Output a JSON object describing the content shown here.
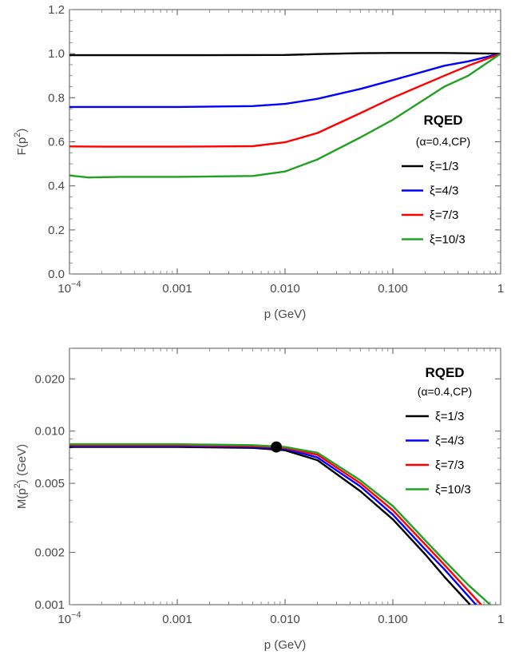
{
  "chart_data": [
    {
      "type": "line",
      "xscale": "log",
      "xlim": [
        0.0001,
        1
      ],
      "ylim": [
        0.0,
        1.2
      ],
      "xlabel": "p (GeV)",
      "ylabel": "F(p²)",
      "ylabel_base": "F(p",
      "ylabel_sup": "2",
      "ylabel_tail": ")",
      "x_ticks": [
        {
          "value": 0.0001,
          "base": "10",
          "sup": "−4"
        },
        {
          "value": 0.001,
          "label": "0.001"
        },
        {
          "value": 0.01,
          "label": "0.010"
        },
        {
          "value": 0.1,
          "label": "0.100"
        },
        {
          "value": 1,
          "label": "1"
        }
      ],
      "y_ticks": [
        {
          "value": 0.0,
          "label": "0.0"
        },
        {
          "value": 0.2,
          "label": "0.2"
        },
        {
          "value": 0.4,
          "label": "0.4"
        },
        {
          "value": 0.6,
          "label": "0.6"
        },
        {
          "value": 0.8,
          "label": "0.8"
        },
        {
          "value": 1.0,
          "label": "1.0"
        },
        {
          "value": 1.2,
          "label": "1.2"
        }
      ],
      "legend": {
        "title": "RQED",
        "subtitle": "(α=0.4,CP)",
        "placement": "right"
      },
      "series": [
        {
          "name": "ξ=1/3",
          "color": "#000000",
          "x": [
            0.0001,
            0.001,
            0.01,
            0.02,
            0.05,
            0.1,
            0.3,
            1
          ],
          "y": [
            0.993,
            0.993,
            0.994,
            0.998,
            1.002,
            1.003,
            1.003,
            1.0
          ]
        },
        {
          "name": "ξ=4/3",
          "color": "#0000ff",
          "x": [
            0.0001,
            0.001,
            0.005,
            0.01,
            0.02,
            0.05,
            0.1,
            0.3,
            0.5,
            1
          ],
          "y": [
            0.758,
            0.758,
            0.762,
            0.772,
            0.795,
            0.84,
            0.88,
            0.945,
            0.965,
            1.0
          ]
        },
        {
          "name": "ξ=7/3",
          "color": "#ff0000",
          "x": [
            0.0001,
            0.0002,
            0.001,
            0.005,
            0.01,
            0.02,
            0.05,
            0.1,
            0.3,
            0.5,
            1
          ],
          "y": [
            0.579,
            0.578,
            0.578,
            0.58,
            0.598,
            0.64,
            0.73,
            0.8,
            0.9,
            0.945,
            1.0
          ]
        },
        {
          "name": "ξ=10/3",
          "color": "#22a022",
          "x": [
            0.0001,
            0.00015,
            0.0003,
            0.001,
            0.005,
            0.01,
            0.02,
            0.05,
            0.1,
            0.3,
            0.5,
            1
          ],
          "y": [
            0.447,
            0.438,
            0.441,
            0.441,
            0.445,
            0.465,
            0.52,
            0.62,
            0.7,
            0.85,
            0.9,
            1.0
          ]
        }
      ]
    },
    {
      "type": "line",
      "xscale": "log",
      "yscale": "log",
      "xlim": [
        0.0001,
        1
      ],
      "ylim": [
        0.001,
        0.03
      ],
      "xlabel": "p (GeV)",
      "ylabel": "M(p²) (GeV)",
      "ylabel_base": "M(p",
      "ylabel_sup": "2",
      "ylabel_tail": ") (GeV)",
      "x_ticks": [
        {
          "value": 0.0001,
          "base": "10",
          "sup": "−4"
        },
        {
          "value": 0.001,
          "label": "0.001"
        },
        {
          "value": 0.01,
          "label": "0.010"
        },
        {
          "value": 0.1,
          "label": "0.100"
        },
        {
          "value": 1,
          "label": "1"
        }
      ],
      "y_ticks": [
        {
          "value": 0.001,
          "label": "0.001"
        },
        {
          "value": 0.002,
          "label": "0.002"
        },
        {
          "value": 0.005,
          "label": "0.005"
        },
        {
          "value": 0.01,
          "label": "0.010"
        },
        {
          "value": 0.02,
          "label": "0.020"
        }
      ],
      "legend": {
        "title": "RQED",
        "subtitle": "(α=0.4,CP)",
        "placement": "top-right"
      },
      "marker": {
        "x": 0.0083,
        "y": 0.0081
      },
      "series": [
        {
          "name": "ξ=1/3",
          "color": "#000000",
          "x": [
            0.0001,
            0.001,
            0.005,
            0.01,
            0.02,
            0.05,
            0.1,
            0.2,
            0.3,
            0.52
          ],
          "y": [
            0.0081,
            0.0081,
            0.008,
            0.00775,
            0.0068,
            0.0045,
            0.0031,
            0.00195,
            0.00145,
            0.001
          ]
        },
        {
          "name": "ξ=4/3",
          "color": "#0000ff",
          "x": [
            0.0001,
            0.001,
            0.005,
            0.01,
            0.02,
            0.05,
            0.1,
            0.2,
            0.3,
            0.59
          ],
          "y": [
            0.0082,
            0.0082,
            0.0081,
            0.0079,
            0.00705,
            0.0048,
            0.0033,
            0.00208,
            0.0016,
            0.001
          ]
        },
        {
          "name": "ξ=7/3",
          "color": "#ff0000",
          "x": [
            0.0001,
            0.001,
            0.005,
            0.01,
            0.02,
            0.05,
            0.1,
            0.2,
            0.3,
            0.66
          ],
          "y": [
            0.0083,
            0.0083,
            0.0082,
            0.008,
            0.0073,
            0.005,
            0.0035,
            0.00222,
            0.0017,
            0.001
          ]
        },
        {
          "name": "ξ=10/3",
          "color": "#22a022",
          "x": [
            0.0001,
            0.001,
            0.005,
            0.01,
            0.02,
            0.05,
            0.1,
            0.2,
            0.3,
            0.5,
            0.8
          ],
          "y": [
            0.0084,
            0.0084,
            0.0083,
            0.0081,
            0.0075,
            0.0052,
            0.0037,
            0.00235,
            0.0018,
            0.0013,
            0.001
          ]
        }
      ]
    }
  ]
}
